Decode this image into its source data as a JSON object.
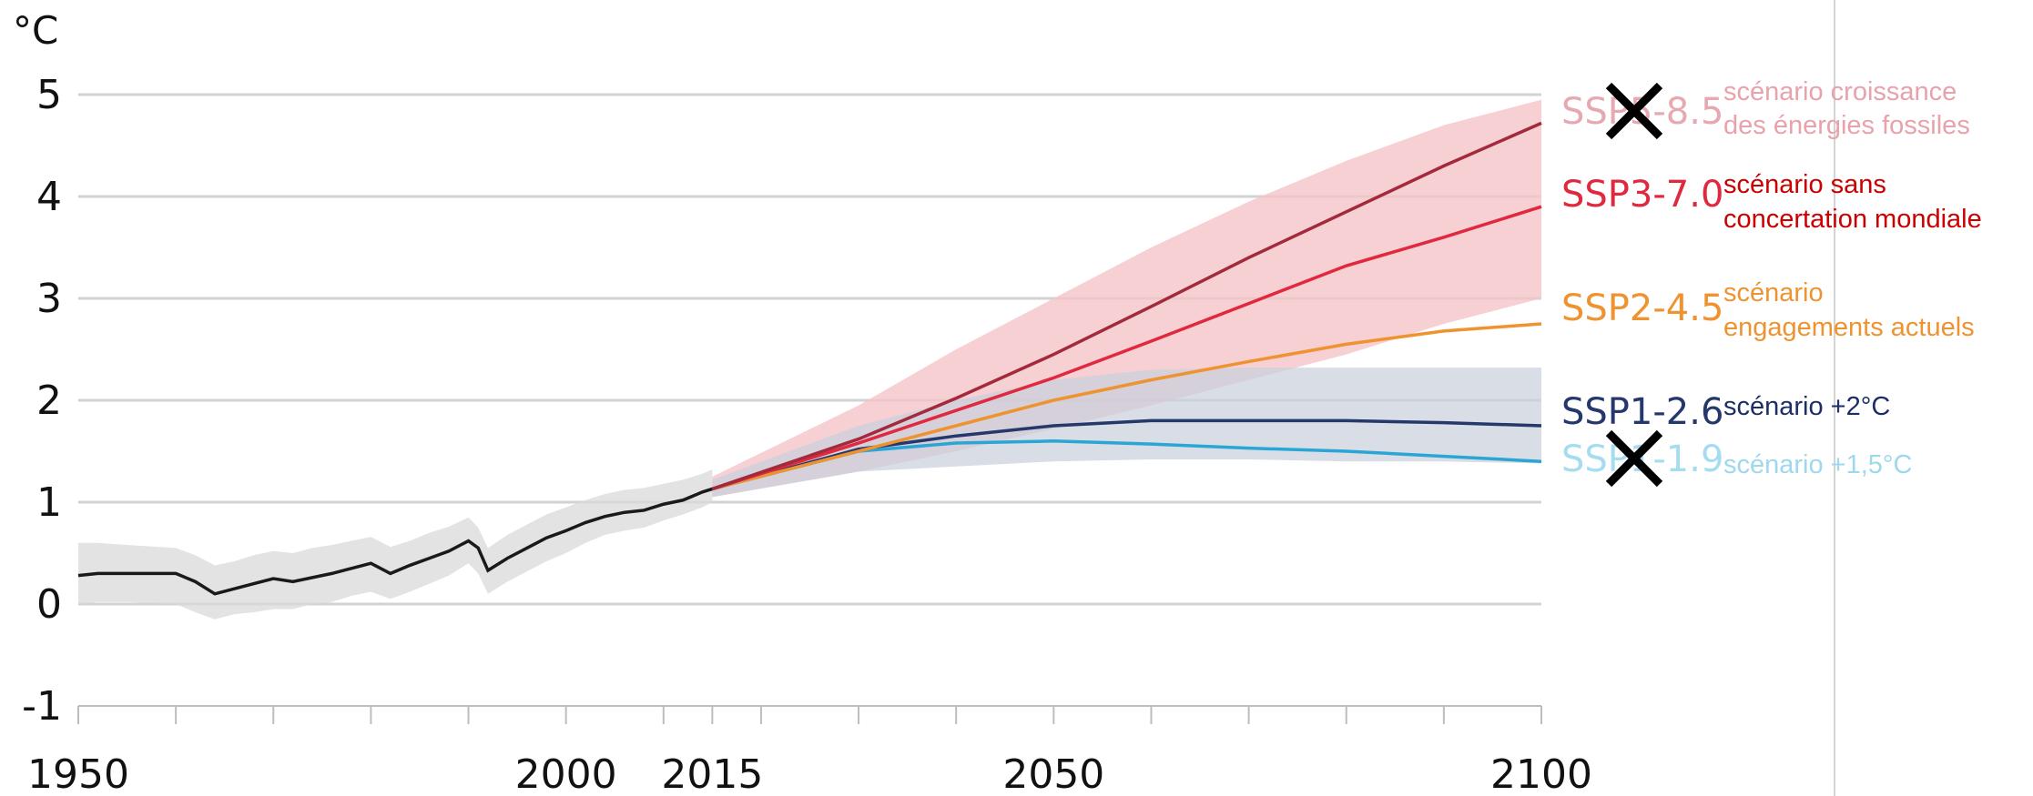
{
  "chart_data": {
    "type": "line",
    "ylabel": "°C",
    "ylim": [
      -1,
      5
    ],
    "yticks": [
      "-1",
      "0",
      "1",
      "2",
      "3",
      "4",
      "5"
    ],
    "xlim": [
      1950,
      2100
    ],
    "xticks": [
      "1950",
      "2000",
      "2015",
      "2050",
      "2100"
    ],
    "grid": "horizontal",
    "colors": {
      "historical": "#1a1a1a",
      "historical_band": "#d9d9d9",
      "ssp585": "#a32a3c",
      "ssp370": "#e0283f",
      "ssp245": "#ee9330",
      "ssp126": "#24386b",
      "ssp119": "#2aa5d6",
      "band_high": "#f5c4c8",
      "band_low": "#c9d0dd"
    },
    "historical": {
      "x": [
        1950,
        1952,
        1955,
        1960,
        1962,
        1964,
        1966,
        1968,
        1970,
        1972,
        1974,
        1976,
        1978,
        1980,
        1982,
        1984,
        1986,
        1988,
        1990,
        1991,
        1992,
        1994,
        1996,
        1998,
        2000,
        2002,
        2004,
        2006,
        2008,
        2010,
        2012,
        2014,
        2015
      ],
      "y": [
        0.28,
        0.3,
        0.3,
        0.3,
        0.22,
        0.1,
        0.15,
        0.2,
        0.25,
        0.22,
        0.26,
        0.3,
        0.35,
        0.4,
        0.3,
        0.38,
        0.45,
        0.52,
        0.62,
        0.55,
        0.33,
        0.45,
        0.55,
        0.65,
        0.72,
        0.8,
        0.86,
        0.9,
        0.92,
        0.98,
        1.02,
        1.1,
        1.13
      ],
      "band_lower": [
        0.0,
        0.02,
        0.02,
        0.0,
        -0.08,
        -0.15,
        -0.1,
        -0.08,
        -0.05,
        -0.05,
        0.0,
        0.02,
        0.08,
        0.12,
        0.05,
        0.12,
        0.2,
        0.28,
        0.4,
        0.3,
        0.1,
        0.22,
        0.32,
        0.42,
        0.5,
        0.6,
        0.68,
        0.72,
        0.75,
        0.82,
        0.88,
        0.95,
        1.0
      ],
      "band_upper": [
        0.6,
        0.6,
        0.58,
        0.55,
        0.48,
        0.38,
        0.42,
        0.48,
        0.52,
        0.5,
        0.55,
        0.58,
        0.62,
        0.66,
        0.56,
        0.62,
        0.7,
        0.76,
        0.85,
        0.75,
        0.55,
        0.68,
        0.78,
        0.88,
        0.95,
        1.02,
        1.08,
        1.12,
        1.14,
        1.18,
        1.22,
        1.28,
        1.32
      ]
    },
    "series": [
      {
        "key": "ssp585",
        "name": "SSP5-8.5",
        "description": [
          "scénario croissance",
          "des énergies fossiles"
        ],
        "crossed_out": true,
        "faded": true,
        "x": [
          2015,
          2030,
          2040,
          2050,
          2060,
          2070,
          2080,
          2090,
          2100
        ],
        "y": [
          1.13,
          1.62,
          2.02,
          2.45,
          2.92,
          3.4,
          3.85,
          4.3,
          4.72
        ]
      },
      {
        "key": "ssp370",
        "name": "SSP3-7.0",
        "description": [
          "scénario sans",
          "concertation mondiale"
        ],
        "x": [
          2015,
          2030,
          2040,
          2050,
          2060,
          2070,
          2080,
          2090,
          2100
        ],
        "y": [
          1.13,
          1.58,
          1.9,
          2.22,
          2.58,
          2.95,
          3.32,
          3.6,
          3.9
        ]
      },
      {
        "key": "ssp245",
        "name": "SSP2-4.5",
        "description": [
          "scénario",
          "engagements actuels"
        ],
        "x": [
          2015,
          2030,
          2040,
          2050,
          2060,
          2070,
          2080,
          2090,
          2100
        ],
        "y": [
          1.13,
          1.5,
          1.75,
          2.0,
          2.2,
          2.38,
          2.55,
          2.68,
          2.75
        ]
      },
      {
        "key": "ssp126",
        "name": "SSP1-2.6",
        "description": [
          "scénario +2°C"
        ],
        "x": [
          2015,
          2030,
          2040,
          2050,
          2060,
          2070,
          2080,
          2090,
          2100
        ],
        "y": [
          1.13,
          1.52,
          1.65,
          1.75,
          1.8,
          1.8,
          1.8,
          1.78,
          1.75
        ]
      },
      {
        "key": "ssp119",
        "name": "SSP1-1.9",
        "description": [
          "scénario +1,5°C"
        ],
        "crossed_out": true,
        "faded": true,
        "x": [
          2015,
          2030,
          2040,
          2050,
          2060,
          2070,
          2080,
          2090,
          2100
        ],
        "y": [
          1.13,
          1.5,
          1.58,
          1.6,
          1.57,
          1.53,
          1.5,
          1.45,
          1.4
        ]
      }
    ],
    "bands": [
      {
        "key": "band_high",
        "x": [
          2015,
          2030,
          2040,
          2050,
          2060,
          2070,
          2080,
          2090,
          2100
        ],
        "lower": [
          1.05,
          1.3,
          1.5,
          1.72,
          1.95,
          2.2,
          2.45,
          2.75,
          3.0
        ],
        "upper": [
          1.25,
          1.95,
          2.5,
          3.0,
          3.5,
          3.95,
          4.35,
          4.7,
          4.95
        ]
      },
      {
        "key": "band_low",
        "x": [
          2015,
          2030,
          2040,
          2050,
          2060,
          2070,
          2080,
          2090,
          2100
        ],
        "lower": [
          1.05,
          1.3,
          1.35,
          1.4,
          1.42,
          1.42,
          1.4,
          1.4,
          1.38
        ],
        "upper": [
          1.22,
          1.75,
          2.0,
          2.2,
          2.3,
          2.32,
          2.32,
          2.32,
          2.32
        ]
      }
    ]
  }
}
